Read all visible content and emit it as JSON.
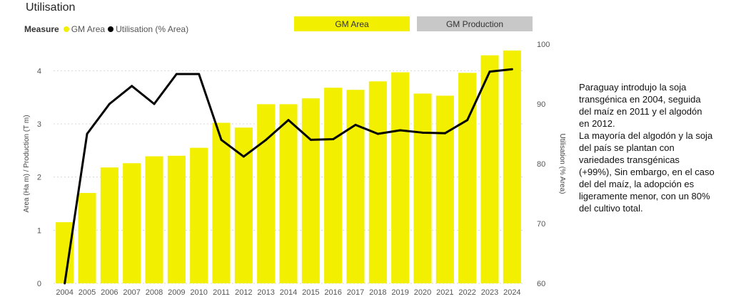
{
  "title": "Utilisation",
  "legend": {
    "label": "Measure",
    "items": [
      {
        "name": "GM Area",
        "color": "#f2ef00"
      },
      {
        "name": "Utilisation (% Area)",
        "color": "#000000"
      }
    ]
  },
  "tabs": [
    {
      "label": "GM Area",
      "active": true,
      "color": "#f2ef00"
    },
    {
      "label": "GM Production",
      "active": false,
      "color": "#c8c8c8"
    }
  ],
  "note": {
    "paragraphs": [
      "Paraguay introdujo la soja transgénica en 2004, seguida del maíz en 2011 y el algodón en 2012.",
      "La mayoría del algodón y la soja del país se plantan con variedades transgénicas (+99%), Sin embargo, en el caso del del maíz, la adopción es ligeramente menor, con un 80% del cultivo total."
    ]
  },
  "chart_data": {
    "type": "bar",
    "title": "Utilisation",
    "categories": [
      "2004",
      "2005",
      "2006",
      "2007",
      "2008",
      "2009",
      "2010",
      "2011",
      "2012",
      "2013",
      "2014",
      "2015",
      "2016",
      "2017",
      "2018",
      "2019",
      "2020",
      "2021",
      "2022",
      "2023",
      "2024"
    ],
    "series": [
      {
        "name": "GM Area",
        "type": "bar",
        "axis": "left",
        "color": "#f2ef00",
        "values": [
          1.15,
          1.7,
          2.18,
          2.26,
          2.39,
          2.4,
          2.55,
          3.02,
          2.93,
          3.37,
          3.37,
          3.48,
          3.68,
          3.64,
          3.8,
          3.97,
          3.57,
          3.53,
          3.96,
          4.29,
          4.38
        ]
      },
      {
        "name": "Utilisation (% Area)",
        "type": "line",
        "axis": "right",
        "color": "#000000",
        "values": [
          60,
          85,
          90,
          93,
          90,
          95,
          95,
          84,
          81.2,
          84,
          87.3,
          84,
          84.1,
          86.5,
          85,
          85.6,
          85.2,
          85.1,
          87.3,
          95.4,
          95.8
        ]
      }
    ],
    "ylabel": "Area (Ha m) / Production (T m)",
    "y2label": "Utilisation (% Area)",
    "ylim": [
      0,
      4.5
    ],
    "y2lim": [
      60,
      100
    ],
    "yticks": [
      0,
      1,
      2,
      3,
      4
    ],
    "y2ticks": [
      60,
      70,
      80,
      90,
      100
    ],
    "grid": true
  }
}
